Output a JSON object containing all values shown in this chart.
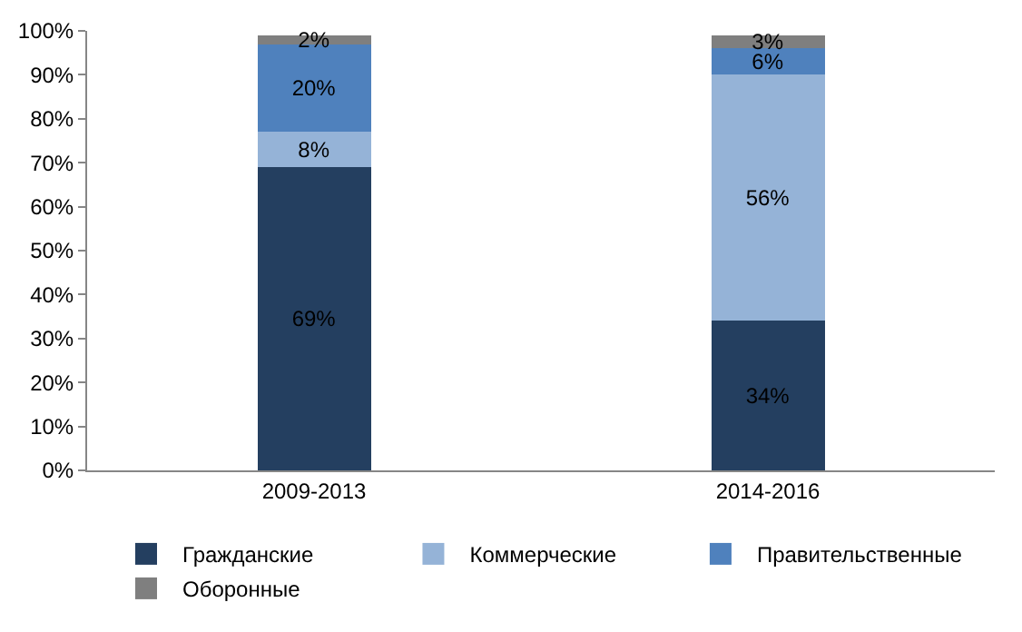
{
  "chart_data": {
    "type": "bar",
    "stacked": true,
    "categories": [
      "2009-2013",
      "2014-2016"
    ],
    "series": [
      {
        "name": "Гражданские",
        "color": "#243f60",
        "values": [
          69,
          34
        ],
        "value_labels": [
          "69%",
          "34%"
        ]
      },
      {
        "name": "Коммерческие",
        "color": "#95b3d7",
        "values": [
          8,
          56
        ],
        "value_labels": [
          "8%",
          "56%"
        ]
      },
      {
        "name": "Правительственные",
        "color": "#4f81bd",
        "values": [
          20,
          6
        ],
        "value_labels": [
          "20%",
          "6%"
        ]
      },
      {
        "name": "Оборонные",
        "color": "#7f7f7f",
        "values": [
          2,
          3
        ],
        "value_labels": [
          "2%",
          "3%"
        ]
      }
    ],
    "ylim": [
      0,
      100
    ],
    "yticks": [
      {
        "value": 0,
        "label": "0%"
      },
      {
        "value": 10,
        "label": "10%"
      },
      {
        "value": 20,
        "label": "20%"
      },
      {
        "value": 30,
        "label": "30%"
      },
      {
        "value": 40,
        "label": "40%"
      },
      {
        "value": 50,
        "label": "50%"
      },
      {
        "value": 60,
        "label": "60%"
      },
      {
        "value": 70,
        "label": "70%"
      },
      {
        "value": 80,
        "label": "80%"
      },
      {
        "value": 90,
        "label": "90%"
      },
      {
        "value": 100,
        "label": "100%"
      }
    ],
    "grid": false,
    "legend": "bottom"
  }
}
